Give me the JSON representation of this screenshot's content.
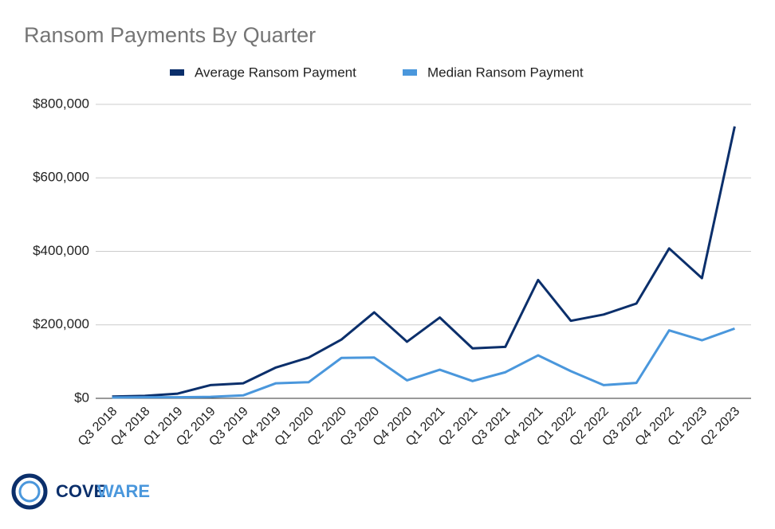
{
  "chart_data": {
    "type": "line",
    "title": "Ransom Payments By Quarter",
    "categories": [
      "Q3 2018",
      "Q4 2018",
      "Q1 2019",
      "Q2 2019",
      "Q3 2019",
      "Q4 2019",
      "Q1 2020",
      "Q2 2020",
      "Q3 2020",
      "Q4 2020",
      "Q1 2021",
      "Q2 2021",
      "Q3 2021",
      "Q4 2021",
      "Q1 2022",
      "Q2 2022",
      "Q3 2022",
      "Q4 2022",
      "Q1 2023",
      "Q2 2023"
    ],
    "series": [
      {
        "name": "Average Ransom Payment",
        "color": "#0b2f6b",
        "values": [
          5000,
          6700,
          12800,
          36000,
          41000,
          84000,
          111000,
          160000,
          234000,
          154000,
          220000,
          136000,
          140000,
          322000,
          211000,
          228000,
          258000,
          408000,
          327000,
          740000
        ]
      },
      {
        "name": "Median Ransom Payment",
        "color": "#4a97dc",
        "values": [
          2500,
          3000,
          3000,
          4000,
          8000,
          41000,
          44000,
          110000,
          111000,
          49000,
          78000,
          47000,
          71000,
          117000,
          74000,
          36000,
          42000,
          185000,
          158000,
          190000
        ]
      }
    ],
    "ylim": [
      0,
      800000
    ],
    "yticks": [
      {
        "value": 0,
        "label": "$0"
      },
      {
        "value": 200000,
        "label": "$200,000"
      },
      {
        "value": 400000,
        "label": "$400,000"
      },
      {
        "value": 600000,
        "label": "$600,000"
      },
      {
        "value": 800000,
        "label": "$800,000"
      }
    ],
    "grid": true,
    "legend": "top"
  },
  "logo": {
    "parts": [
      "COVE",
      "WARE"
    ]
  }
}
